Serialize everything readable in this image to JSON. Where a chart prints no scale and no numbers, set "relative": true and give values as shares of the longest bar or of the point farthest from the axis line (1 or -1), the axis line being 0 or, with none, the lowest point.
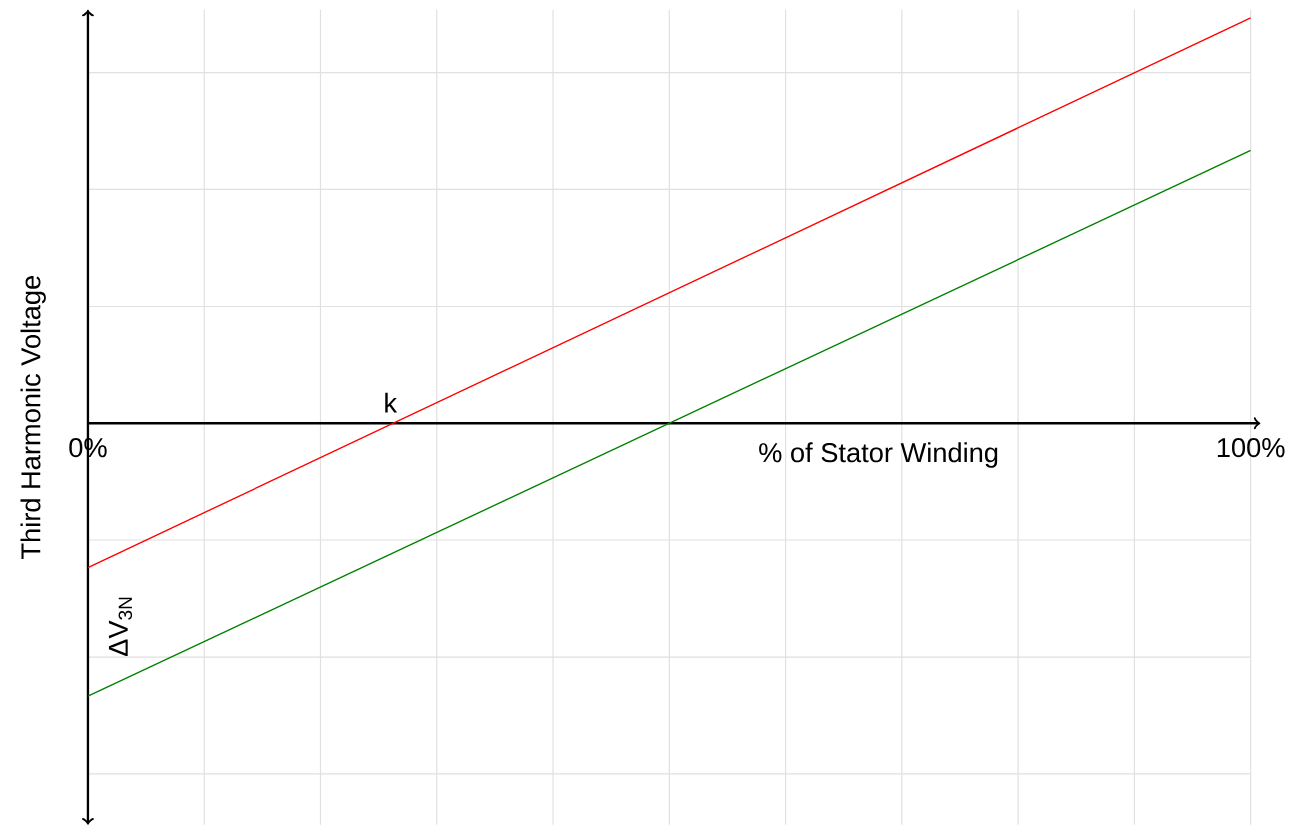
{
  "chart_data": {
    "type": "line",
    "relative": true,
    "xlabel": "% of Stator Winding",
    "ylabel": "Third Harmonic Voltage",
    "x": [
      0,
      100
    ],
    "xlim": [
      0,
      100
    ],
    "xticks": [
      {
        "value": 0,
        "label": "0%"
      },
      {
        "value": 10,
        "label": null
      },
      {
        "value": 20,
        "label": null
      },
      {
        "value": 30,
        "label": null
      },
      {
        "value": 40,
        "label": null
      },
      {
        "value": 50,
        "label": null
      },
      {
        "value": 60,
        "label": null
      },
      {
        "value": 70,
        "label": null
      },
      {
        "value": 80,
        "label": null
      },
      {
        "value": 90,
        "label": null
      },
      {
        "value": 100,
        "label": "100%"
      }
    ],
    "series": [
      {
        "color": "#ff0000",
        "values": [
          -0.356,
          1
        ]
      },
      {
        "color": "#008000",
        "values": [
          -0.673,
          0.673
        ]
      }
    ],
    "annotations": [
      {
        "text": "k",
        "x": 26,
        "y": 0
      },
      "ΔV$_{3N}$"
    ],
    "grid": true,
    "marker": "none",
    "line_style": "solid"
  }
}
